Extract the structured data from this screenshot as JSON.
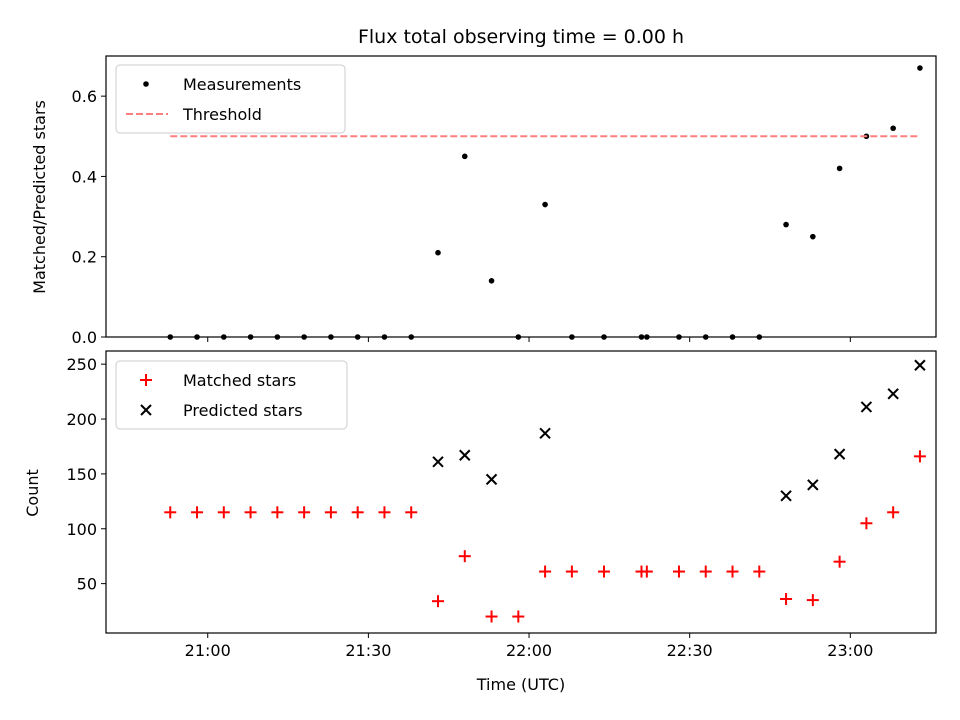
{
  "title": "Flux total observing time = 0.00 h",
  "xlabel": "Time (UTC)",
  "colors": {
    "measurements": "#000000",
    "threshold": "#ff7f7f",
    "matched": "#ff0000",
    "predicted": "#000000"
  },
  "chart_data": [
    {
      "type": "scatter",
      "panel": "top",
      "ylabel": "Matched/Predicted stars",
      "ylim": [
        0,
        0.7
      ],
      "yticks": [
        "0.0",
        "0.2",
        "0.4",
        "0.6"
      ],
      "ytick_values": [
        0,
        0.2,
        0.4,
        0.6
      ],
      "xlim": [
        "20:41",
        "23:16"
      ],
      "xticks": [
        "21:00",
        "21:30",
        "22:00",
        "22:30",
        "23:00"
      ],
      "legend_position": "top-left",
      "series": [
        {
          "name": "Measurements",
          "marker": "dot",
          "x": [
            "20:53",
            "20:58",
            "21:03",
            "21:08",
            "21:13",
            "21:18",
            "21:23",
            "21:28",
            "21:33",
            "21:38",
            "21:43",
            "21:48",
            "21:53",
            "21:58",
            "22:03",
            "22:08",
            "22:14",
            "22:21",
            "22:22",
            "22:28",
            "22:33",
            "22:38",
            "22:43",
            "22:48",
            "22:53",
            "22:58",
            "23:03",
            "23:08",
            "23:13"
          ],
          "y": [
            0,
            0,
            0,
            0,
            0,
            0,
            0,
            0,
            0,
            0,
            0.21,
            0.45,
            0.14,
            0,
            0.33,
            0,
            0,
            0,
            0,
            0,
            0,
            0,
            0,
            0.28,
            0.25,
            0.42,
            0.5,
            0.52,
            0.67
          ]
        },
        {
          "name": "Threshold",
          "style": "dashed",
          "x": [
            "20:53",
            "23:13"
          ],
          "y": [
            0.5,
            0.5
          ]
        }
      ]
    },
    {
      "type": "scatter",
      "panel": "bottom",
      "ylabel": "Count",
      "xlabel": "Time (UTC)",
      "ylim": [
        5,
        262
      ],
      "yticks": [
        "50",
        "100",
        "150",
        "200",
        "250"
      ],
      "ytick_values": [
        50,
        100,
        150,
        200,
        250
      ],
      "xlim": [
        "20:41",
        "23:16"
      ],
      "xticks": [
        "21:00",
        "21:30",
        "22:00",
        "22:30",
        "23:00"
      ],
      "legend_position": "top-left",
      "series": [
        {
          "name": "Matched stars",
          "marker": "plus",
          "x": [
            "20:53",
            "20:58",
            "21:03",
            "21:08",
            "21:13",
            "21:18",
            "21:23",
            "21:28",
            "21:33",
            "21:38",
            "21:43",
            "21:48",
            "21:53",
            "21:58",
            "22:03",
            "22:08",
            "22:14",
            "22:21",
            "22:22",
            "22:28",
            "22:33",
            "22:38",
            "22:43",
            "22:48",
            "22:53",
            "22:58",
            "23:03",
            "23:08",
            "23:13"
          ],
          "y": [
            115,
            115,
            115,
            115,
            115,
            115,
            115,
            115,
            115,
            115,
            34,
            75,
            20,
            20,
            61,
            61,
            61,
            61,
            61,
            61,
            61,
            61,
            61,
            36,
            35,
            70,
            105,
            115,
            166
          ]
        },
        {
          "name": "Predicted stars",
          "marker": "x",
          "x": [
            "21:43",
            "21:48",
            "21:53",
            "22:03",
            "22:48",
            "22:53",
            "22:58",
            "23:03",
            "23:08",
            "23:13"
          ],
          "y": [
            161,
            167,
            145,
            187,
            130,
            140,
            168,
            211,
            223,
            249
          ]
        }
      ]
    }
  ]
}
